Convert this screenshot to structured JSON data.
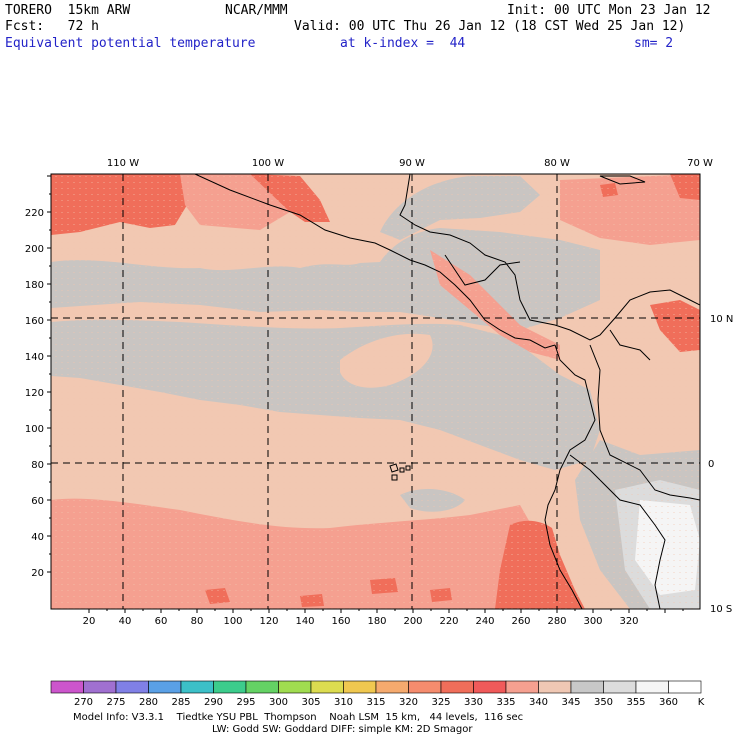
{
  "header": {
    "model": "TORERO  15km ARW",
    "center": "NCAR/MMM",
    "init": "Init: 00 UTC Mon 23 Jan 12",
    "fcst": "Fcst:   72 h",
    "valid": "Valid: 00 UTC Thu 26 Jan 12 (18 CST Wed 25 Jan 12)",
    "field": "Equivalent potential temperature",
    "level": "at k-index =  44",
    "smooth": "sm= 2"
  },
  "map": {
    "lon_labels": [
      "110 W",
      "100 W",
      "90 W",
      "80 W",
      "70 W"
    ],
    "lat_labels": [
      "10 N",
      "0",
      "10 S"
    ],
    "x_ticks": [
      "20",
      "40",
      "60",
      "80",
      "100",
      "120",
      "140",
      "160",
      "180",
      "200",
      "220",
      "240",
      "260",
      "280",
      "300",
      "320"
    ],
    "y_ticks": [
      "20",
      "40",
      "60",
      "80",
      "100",
      "120",
      "140",
      "160",
      "180",
      "200",
      "220"
    ]
  },
  "colorbar": {
    "labels": [
      "270",
      "275",
      "280",
      "285",
      "290",
      "295",
      "300",
      "305",
      "310",
      "315",
      "320",
      "325",
      "330",
      "335",
      "340",
      "345",
      "350",
      "355",
      "360"
    ],
    "unit": "K",
    "colors": [
      "#cc55cc",
      "#a070d0",
      "#8080e6",
      "#5aa0e6",
      "#3cc0c8",
      "#3ccc8c",
      "#64d264",
      "#a0dc50",
      "#dcdc50",
      "#f0c850",
      "#f5aa6e",
      "#f58c6e",
      "#f06e5a",
      "#f05a5a",
      "#f5a090",
      "#f0c8b4",
      "#c8c8c8",
      "#dcdcdc",
      "#f5f5f5",
      "#ffffff"
    ]
  },
  "footer": {
    "line1": "Model Info: V3.3.1    Tiedtke YSU PBL  Thompson    Noah LSM  15 km,   44 levels,  116 sec",
    "line2": "LW: Godd SW: Goddard DIFF: simple KM: 2D Smagor"
  }
}
